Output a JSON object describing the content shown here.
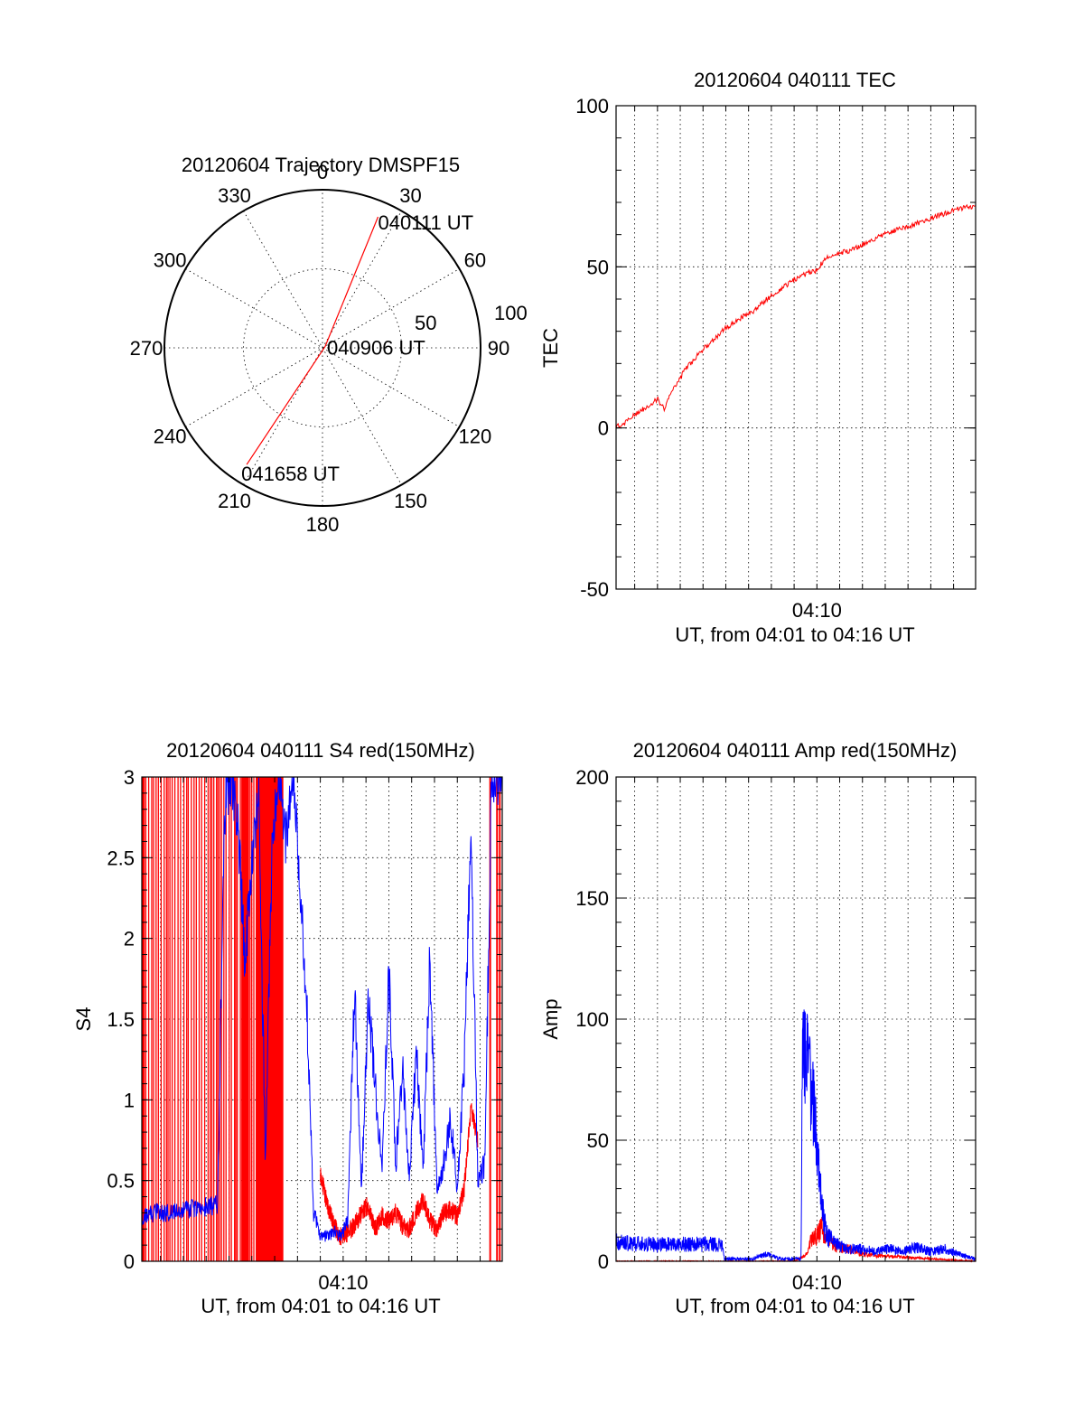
{
  "colors": {
    "red": "#ff0000",
    "blue": "#0000ff"
  },
  "chart_data": [
    {
      "type": "polar",
      "title": "20120604 Trajectory DMSPF15",
      "angle_labels": [
        "0",
        "30",
        "60",
        "90",
        "120",
        "150",
        "180",
        "210",
        "240",
        "270",
        "300",
        "330"
      ],
      "radius_labels": [
        "50",
        "100"
      ],
      "radius_range": [
        0,
        100
      ],
      "trajectory": {
        "color": "red",
        "points": [
          {
            "az": 23,
            "r": 90,
            "label": "040111 UT"
          },
          {
            "az": 60,
            "r": 2,
            "label": "040906 UT"
          },
          {
            "az": 213,
            "r": 88,
            "label": "041658 UT"
          }
        ]
      },
      "grid": true
    },
    {
      "type": "line",
      "title": "20120604 040111 TEC",
      "xlabel": "UT, from 04:01 to 04:16 UT",
      "ylabel": "TEC",
      "xlim": [
        4.0197,
        4.2828
      ],
      "ylim": [
        -50,
        100
      ],
      "yticks": [
        "100",
        "50",
        "0",
        "-50"
      ],
      "xticks": [
        {
          "value": 4.1667,
          "label": "04:10"
        }
      ],
      "grid": true,
      "series": [
        {
          "color": "red",
          "x": [
            4.0197,
            4.025,
            4.03,
            4.036,
            4.04,
            4.045,
            4.05,
            4.055,
            4.06,
            4.065,
            4.07,
            4.08,
            4.09,
            4.1,
            4.11,
            4.12,
            4.13,
            4.14,
            4.15,
            4.16,
            4.1667,
            4.17,
            4.175,
            4.18,
            4.19,
            4.2,
            4.21,
            4.22,
            4.23,
            4.24,
            4.25,
            4.26,
            4.27,
            4.2828
          ],
          "y": [
            0.5,
            1,
            3,
            5,
            6,
            7.5,
            9,
            6,
            11,
            14,
            18,
            23,
            27,
            31,
            34,
            36,
            40,
            43,
            46,
            48,
            49,
            51,
            53,
            54,
            55,
            57,
            59,
            61,
            62,
            63.5,
            65,
            66.5,
            68,
            69
          ]
        }
      ]
    },
    {
      "type": "line",
      "title": "20120604 040111 S4 red(150MHz)",
      "xlabel": "UT, from 04:01 to 04:16 UT",
      "ylabel": "S4",
      "xlim": [
        4.0197,
        4.2828
      ],
      "ylim": [
        0,
        3
      ],
      "yticks": [
        "3",
        "2.5",
        "2",
        "1.5",
        "1",
        "0.5",
        "0"
      ],
      "xticks": [
        {
          "value": 4.1667,
          "label": "04:10"
        }
      ],
      "grid": true,
      "series": [
        {
          "color": "red",
          "note_spikes_to_top_from": 4.0197,
          "x": [
            4.15,
            4.155,
            4.16,
            4.165,
            4.17,
            4.175,
            4.18,
            4.185,
            4.19,
            4.195,
            4.2,
            4.205,
            4.21,
            4.215,
            4.22,
            4.225,
            4.23,
            4.235,
            4.24,
            4.245,
            4.25,
            4.255,
            4.26,
            4.265
          ],
          "y": [
            0.55,
            0.35,
            0.22,
            0.15,
            0.18,
            0.22,
            0.3,
            0.35,
            0.2,
            0.28,
            0.25,
            0.3,
            0.22,
            0.2,
            0.3,
            0.38,
            0.25,
            0.2,
            0.3,
            0.32,
            0.28,
            0.45,
            0.95,
            0.75
          ]
        },
        {
          "color": "blue",
          "x": [
            4.0197,
            4.03,
            4.04,
            4.05,
            4.06,
            4.07,
            4.075,
            4.08,
            4.085,
            4.09,
            4.095,
            4.1,
            4.105,
            4.11,
            4.115,
            4.12,
            4.125,
            4.13,
            4.135,
            4.14,
            4.145,
            4.15,
            4.155,
            4.16,
            4.165,
            4.17,
            4.175,
            4.18,
            4.185,
            4.19,
            4.195,
            4.2,
            4.205,
            4.21,
            4.215,
            4.22,
            4.225,
            4.23,
            4.235,
            4.24,
            4.245,
            4.25,
            4.255,
            4.26,
            4.265,
            4.27,
            4.275,
            4.2828
          ],
          "y": [
            0.28,
            0.3,
            0.3,
            0.32,
            0.33,
            0.34,
            0.35,
            2.8,
            3.0,
            2.7,
            1.8,
            2.5,
            2.9,
            0.6,
            2.7,
            2.9,
            2.6,
            3.0,
            2.4,
            1.6,
            0.3,
            0.16,
            0.15,
            0.18,
            0.15,
            0.25,
            1.7,
            0.45,
            1.6,
            1.1,
            0.55,
            1.8,
            0.6,
            1.2,
            0.5,
            1.3,
            0.55,
            1.9,
            0.45,
            0.6,
            0.9,
            0.45,
            1.2,
            2.7,
            0.5,
            0.6,
            3.0,
            3.0
          ]
        }
      ]
    },
    {
      "type": "line",
      "title": "20120604 040111 Amp red(150MHz)",
      "xlabel": "UT, from 04:01 to 04:16 UT",
      "ylabel": "Amp",
      "xlim": [
        4.0197,
        4.2828
      ],
      "ylim": [
        0,
        200
      ],
      "yticks": [
        "200",
        "150",
        "100",
        "50",
        "0"
      ],
      "xticks": [
        {
          "value": 4.1667,
          "label": "04:10"
        }
      ],
      "grid": true,
      "series": [
        {
          "color": "red",
          "x": [
            4.0197,
            4.15,
            4.16,
            4.162,
            4.165,
            4.168,
            4.17,
            4.172,
            4.175,
            4.18,
            4.19,
            4.2,
            4.22,
            4.25,
            4.2828
          ],
          "y": [
            0,
            0,
            3,
            8,
            10,
            12,
            14,
            11,
            9,
            6,
            5,
            3,
            2,
            1,
            0
          ]
        },
        {
          "color": "blue",
          "x": [
            4.0197,
            4.04,
            4.06,
            4.08,
            4.097,
            4.099,
            4.11,
            4.12,
            4.13,
            4.14,
            4.15,
            4.155,
            4.156,
            4.158,
            4.16,
            4.162,
            4.165,
            4.168,
            4.17,
            4.172,
            4.175,
            4.18,
            4.185,
            4.19,
            4.2,
            4.21,
            4.22,
            4.23,
            4.24,
            4.25,
            4.26,
            4.27,
            4.2828
          ],
          "y": [
            8,
            7,
            7,
            7,
            7,
            1,
            1,
            1,
            3,
            1,
            1,
            1,
            95,
            80,
            98,
            75,
            60,
            40,
            25,
            15,
            10,
            7,
            6,
            5,
            5,
            4,
            5,
            4,
            6,
            4,
            5,
            3,
            1
          ]
        }
      ]
    }
  ]
}
